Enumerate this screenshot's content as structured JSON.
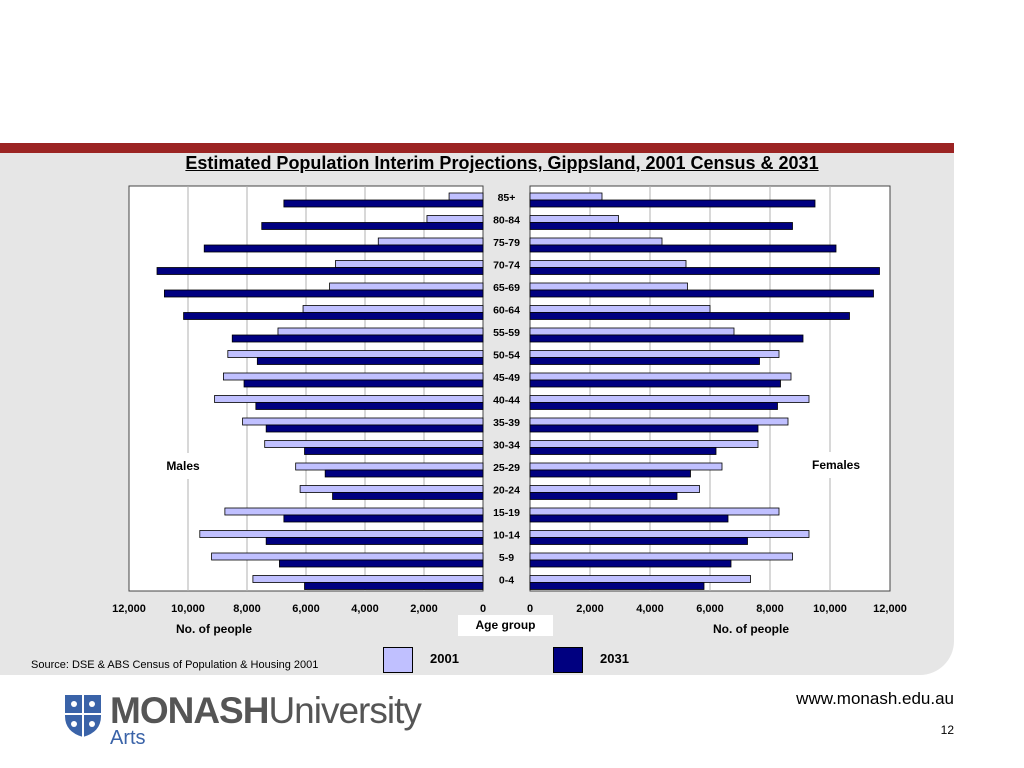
{
  "slide": {
    "source": "Source: DSE & ABS Census of Population & Housing 2001",
    "url": "www.monash.edu.au",
    "page_number": "12",
    "logo_word_bold": "MONASH",
    "logo_word_light": "University",
    "logo_faculty": "Arts",
    "accent_band_color": "#9b2423"
  },
  "chart_data": {
    "type": "bar",
    "orientation": "horizontal",
    "layout": "population-pyramid",
    "title": "Estimated Population Interim Projections, Gippsland, 2001 Census & 2031",
    "categories": [
      "85+",
      "80-84",
      "75-79",
      "70-74",
      "65-69",
      "60-64",
      "55-59",
      "50-54",
      "45-49",
      "40-44",
      "35-39",
      "30-34",
      "25-29",
      "20-24",
      "15-19",
      "10-14",
      "5-9",
      "0-4"
    ],
    "center_label": "Age group",
    "males": {
      "label": "Males",
      "xlabel": "No. of people",
      "xlim": [
        0,
        12000
      ],
      "ticks": [
        "12,000",
        "10,000",
        "8,000",
        "6,000",
        "4,000",
        "2,000",
        "0"
      ],
      "series": [
        {
          "name": "2001",
          "color": "#c0c0ff",
          "values": [
            1150,
            1900,
            3550,
            5000,
            5200,
            6100,
            6950,
            8650,
            8800,
            9100,
            8150,
            7400,
            6350,
            6200,
            8750,
            9600,
            9200,
            7800
          ]
        },
        {
          "name": "2031",
          "color": "#000080",
          "values": [
            6750,
            7500,
            9450,
            11050,
            10800,
            10150,
            8500,
            7650,
            8100,
            7700,
            7350,
            6050,
            5350,
            5100,
            6750,
            7350,
            6900,
            6050
          ]
        }
      ]
    },
    "females": {
      "label": "Females",
      "xlabel": "No. of people",
      "xlim": [
        0,
        12000
      ],
      "ticks": [
        "0",
        "2,000",
        "4,000",
        "6,000",
        "8,000",
        "10,000",
        "12,000"
      ],
      "series": [
        {
          "name": "2001",
          "color": "#c0c0ff",
          "values": [
            2400,
            2950,
            4400,
            5200,
            5250,
            6000,
            6800,
            8300,
            8700,
            9300,
            8600,
            7600,
            6400,
            5650,
            8300,
            9300,
            8750,
            7350
          ]
        },
        {
          "name": "2031",
          "color": "#000080",
          "values": [
            9500,
            8750,
            10200,
            11650,
            11450,
            10650,
            9100,
            7650,
            8350,
            8250,
            7600,
            6200,
            5350,
            4900,
            6600,
            7250,
            6700,
            5800
          ]
        }
      ]
    },
    "legend": [
      {
        "name": "2001",
        "color": "#c0c0ff"
      },
      {
        "name": "2031",
        "color": "#000080"
      }
    ],
    "legend_position": "bottom-center",
    "grid": true
  }
}
